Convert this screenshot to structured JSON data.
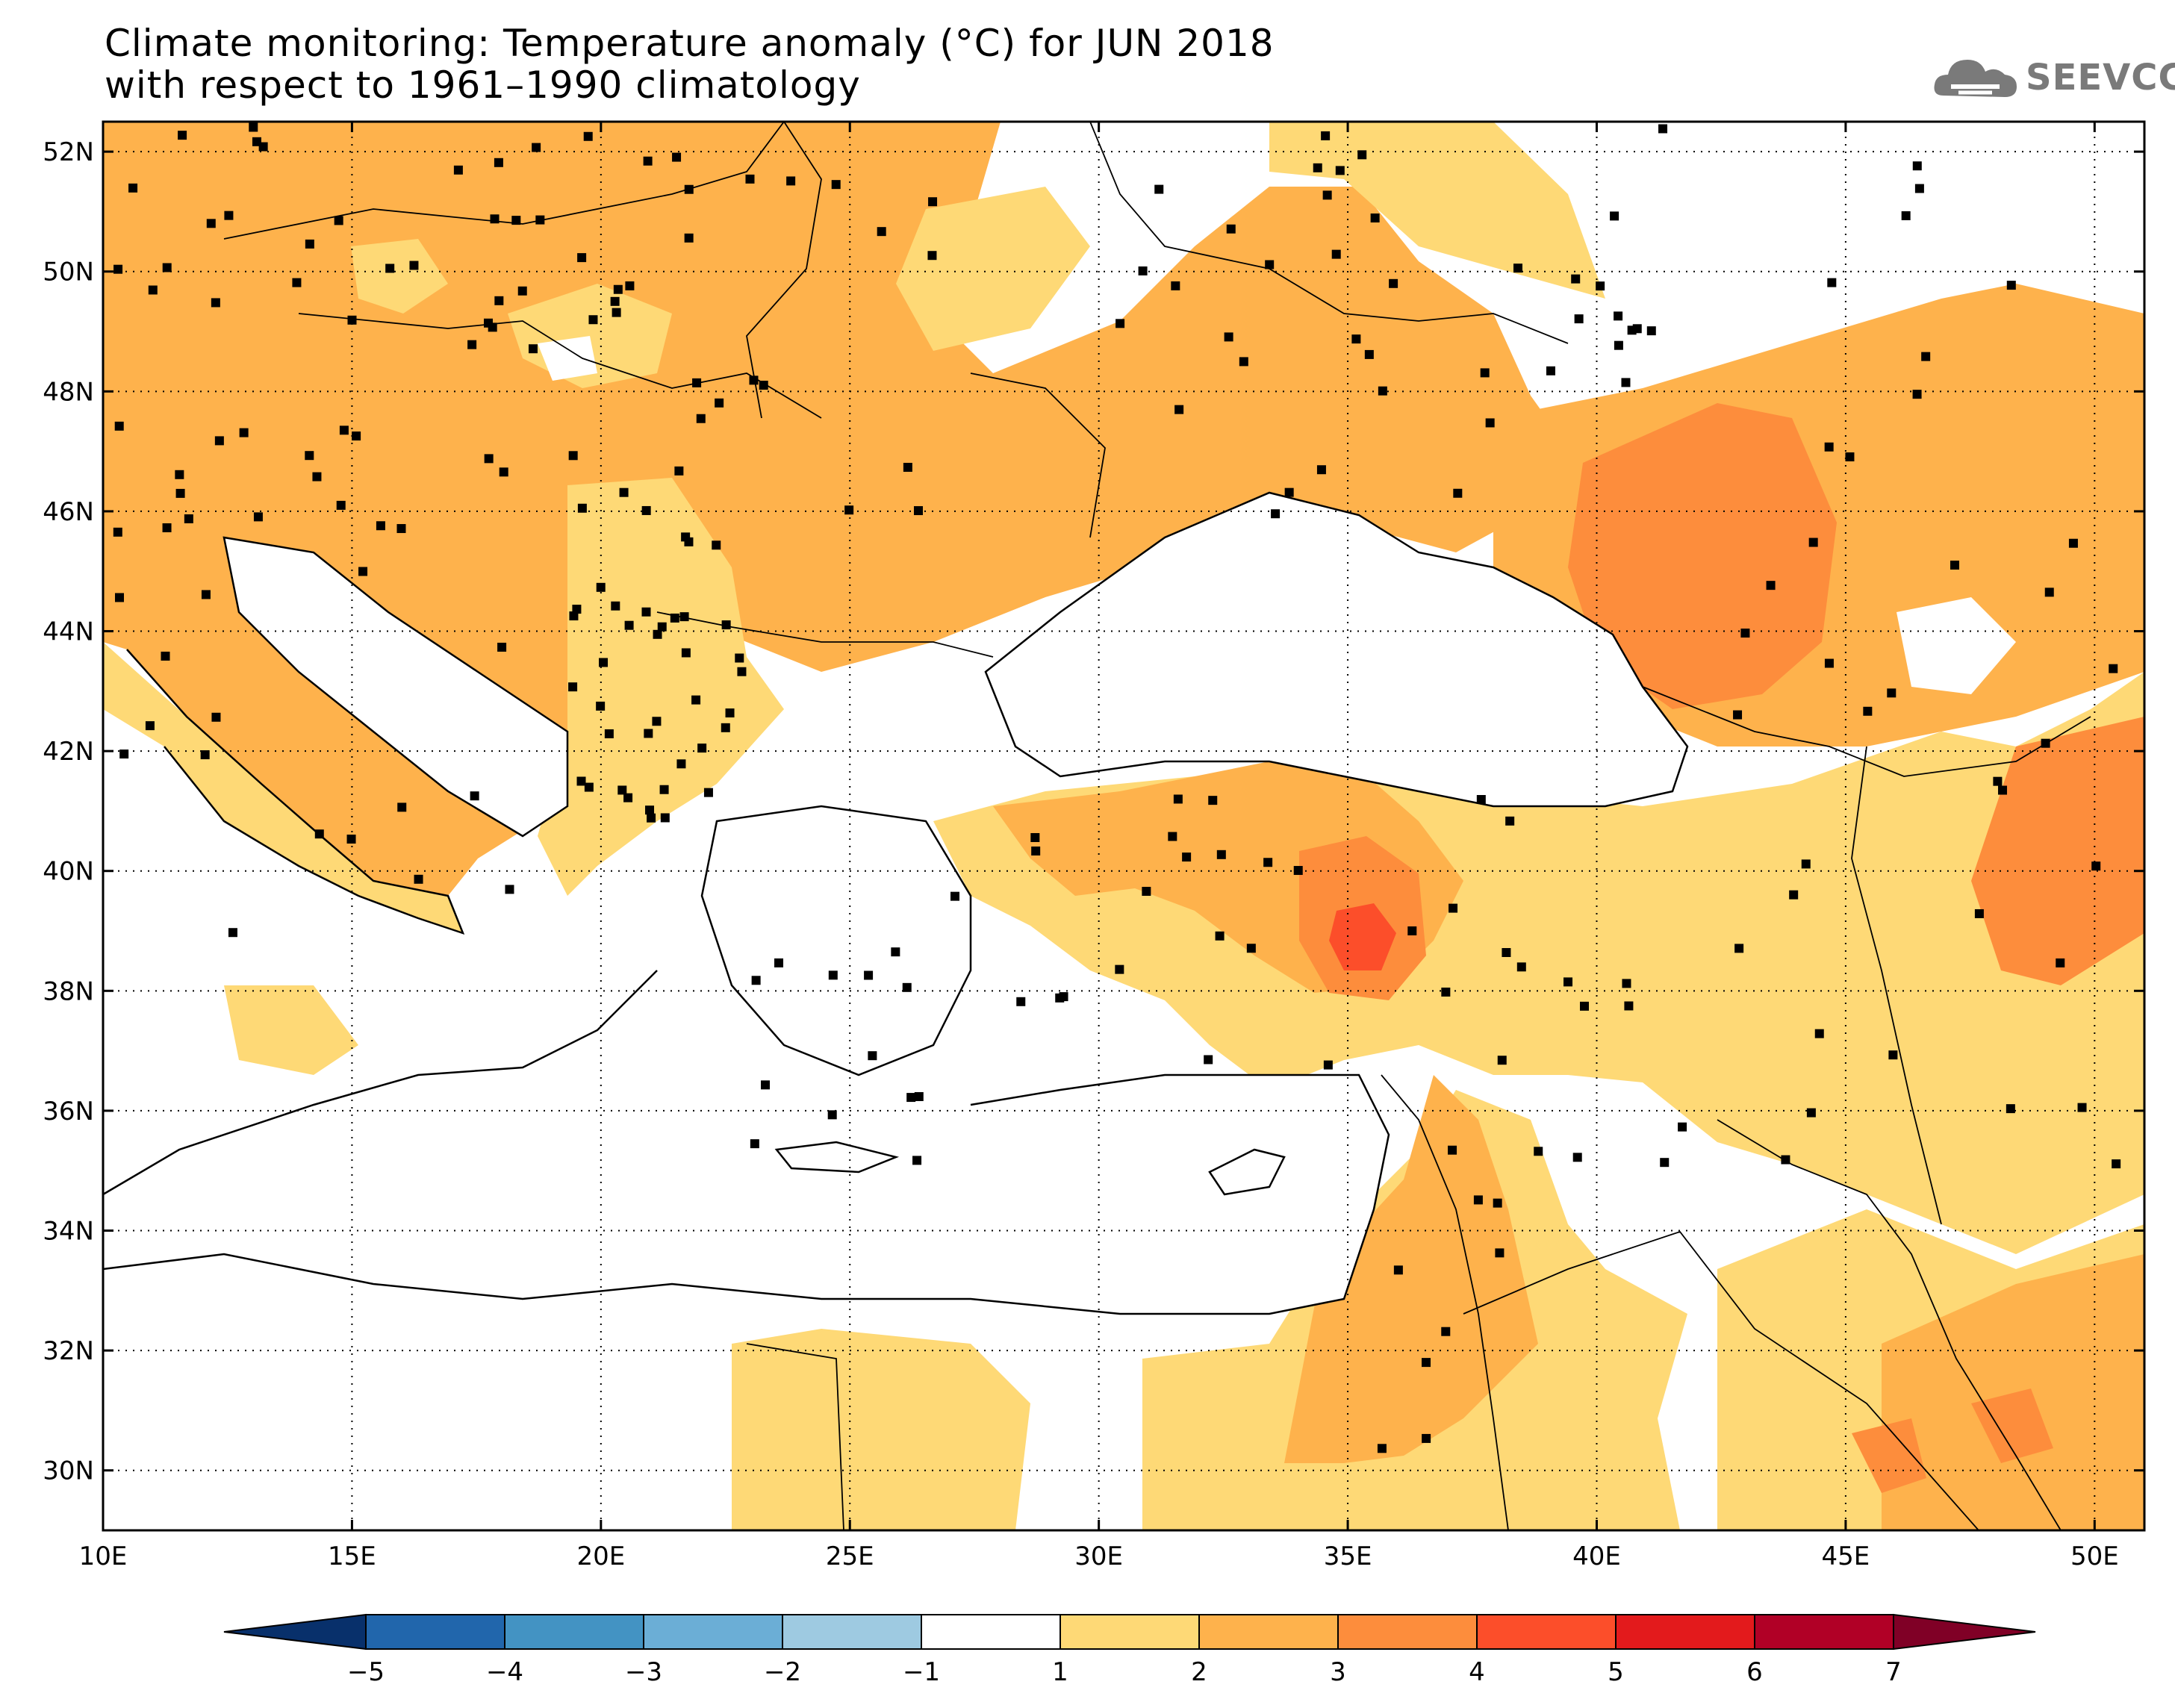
{
  "title": {
    "line1": "Climate monitoring: Temperature anomaly (°C) for JUN 2018",
    "line2": "with respect to 1961–1990 climatology"
  },
  "logo": {
    "text": "SEEVCCC",
    "icon": "cloud-icon",
    "color": "#7a7a7a"
  },
  "map": {
    "lon_range": [
      10,
      51
    ],
    "lat_range": [
      29,
      52.5
    ],
    "x_ticks": [
      "10E",
      "15E",
      "20E",
      "25E",
      "30E",
      "35E",
      "40E",
      "45E",
      "50E"
    ],
    "y_ticks": [
      "52N",
      "50N",
      "48N",
      "46N",
      "44N",
      "42N",
      "40N",
      "38N",
      "36N",
      "34N",
      "32N",
      "30N"
    ],
    "grid": "dotted"
  },
  "colorbar": {
    "labels": [
      "−5",
      "−4",
      "−3",
      "−2",
      "−1",
      "1",
      "2",
      "3",
      "4",
      "5",
      "6",
      "7"
    ],
    "colors": [
      "#08306b",
      "#2166ac",
      "#4393c3",
      "#6baed6",
      "#9ecae1",
      "#ffffff",
      "#fed976",
      "#feb24c",
      "#fd8d3c",
      "#fc4e2a",
      "#e31a1c",
      "#b10026",
      "#800026"
    ]
  }
}
